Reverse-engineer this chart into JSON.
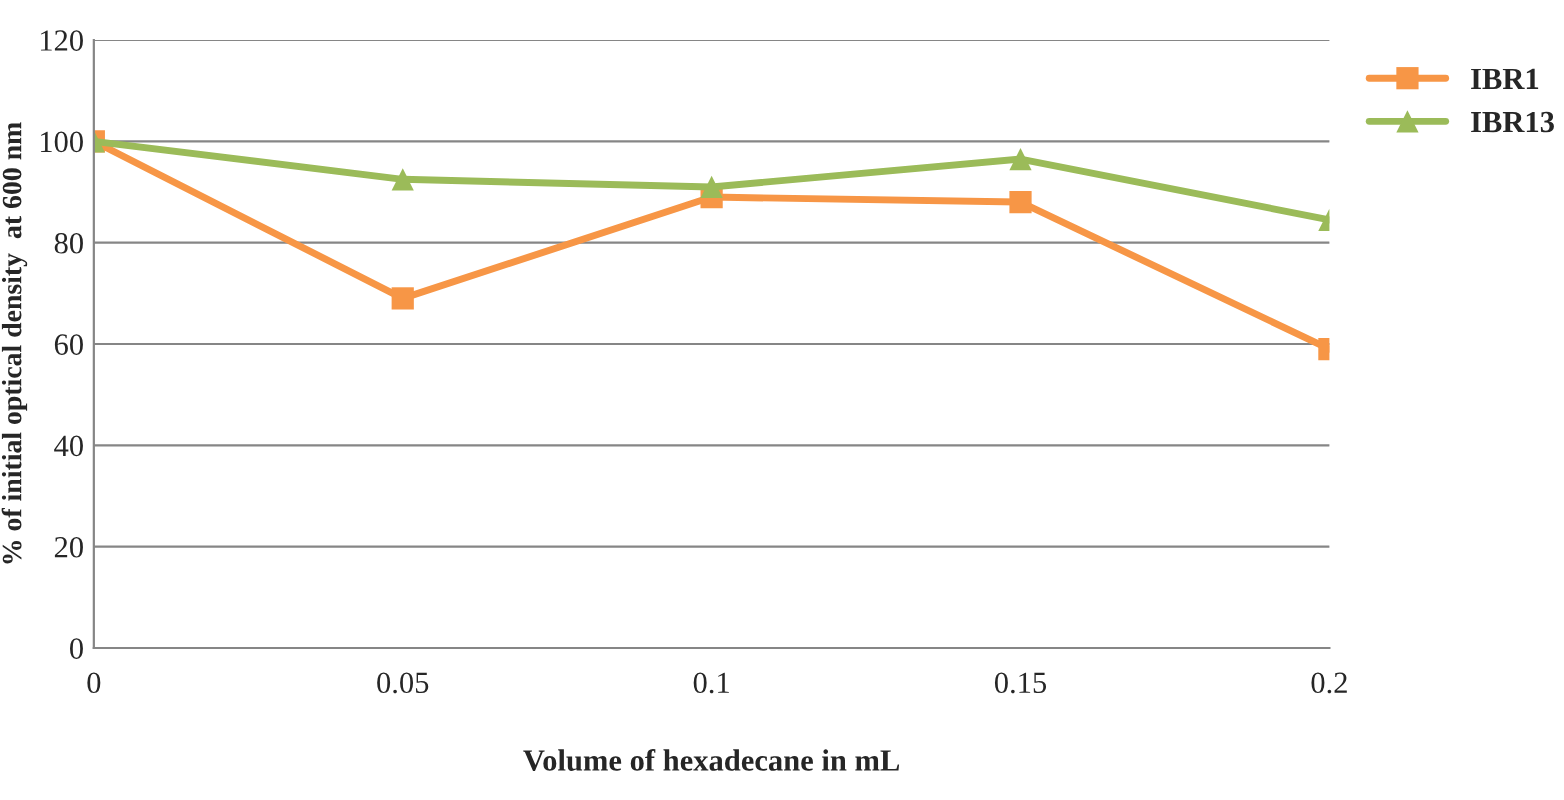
{
  "chart_data": {
    "type": "line",
    "xlabel": "Volume of hexadecane in mL",
    "ylabel": "% of initial optical density  at 600 nm",
    "categories": [
      "0",
      "0.05",
      "0.1",
      "0.15",
      "0.2"
    ],
    "series": [
      {
        "name": "IBR1",
        "color": "#f79646",
        "marker": "square",
        "values": [
          100,
          69,
          89,
          88,
          59
        ]
      },
      {
        "name": "IBR13",
        "color": "#9bbb59",
        "marker": "triangle",
        "values": [
          100,
          92.5,
          91,
          96.5,
          84.5
        ]
      }
    ],
    "ylim": [
      0,
      120
    ],
    "yticks": [
      0,
      20,
      40,
      60,
      80,
      100,
      120
    ],
    "grid": "y",
    "legend": "top right",
    "line_style": "solid"
  }
}
